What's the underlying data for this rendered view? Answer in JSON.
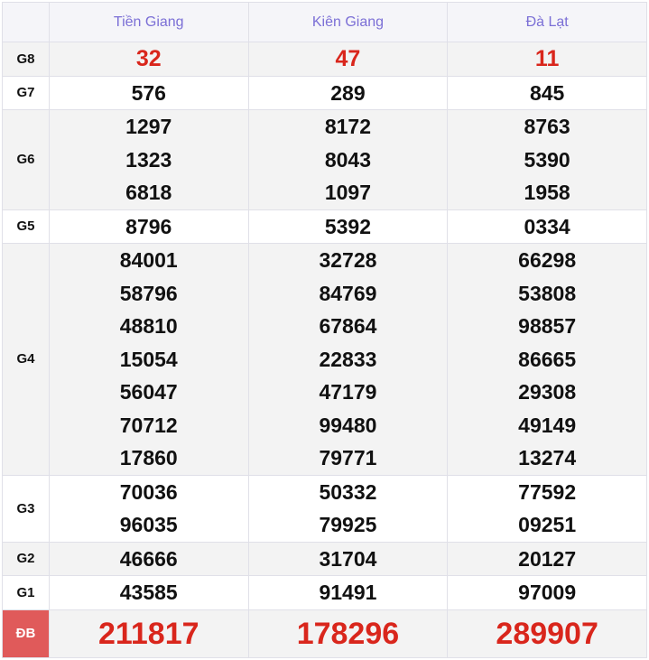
{
  "header": {
    "provinces": [
      "Tiền Giang",
      "Kiên Giang",
      "Đà Lạt"
    ]
  },
  "colors": {
    "header_text": "#7b6fd6",
    "highlight": "#d9261c",
    "special_label_bg": "#e05a5a"
  },
  "rows": [
    {
      "label": "G8",
      "values": [
        [
          "32"
        ],
        [
          "47"
        ],
        [
          "11"
        ]
      ]
    },
    {
      "label": "G7",
      "values": [
        [
          "576"
        ],
        [
          "289"
        ],
        [
          "845"
        ]
      ]
    },
    {
      "label": "G6",
      "values": [
        [
          "1297",
          "1323",
          "6818"
        ],
        [
          "8172",
          "8043",
          "1097"
        ],
        [
          "8763",
          "5390",
          "1958"
        ]
      ]
    },
    {
      "label": "G5",
      "values": [
        [
          "8796"
        ],
        [
          "5392"
        ],
        [
          "0334"
        ]
      ]
    },
    {
      "label": "G4",
      "values": [
        [
          "84001",
          "58796",
          "48810",
          "15054",
          "56047",
          "70712",
          "17860"
        ],
        [
          "32728",
          "84769",
          "67864",
          "22833",
          "47179",
          "99480",
          "79771"
        ],
        [
          "66298",
          "53808",
          "98857",
          "86665",
          "29308",
          "49149",
          "13274"
        ]
      ]
    },
    {
      "label": "G3",
      "values": [
        [
          "70036",
          "96035"
        ],
        [
          "50332",
          "79925"
        ],
        [
          "77592",
          "09251"
        ]
      ]
    },
    {
      "label": "G2",
      "values": [
        [
          "46666"
        ],
        [
          "31704"
        ],
        [
          "20127"
        ]
      ]
    },
    {
      "label": "G1",
      "values": [
        [
          "43585"
        ],
        [
          "91491"
        ],
        [
          "97009"
        ]
      ]
    },
    {
      "label": "ĐB",
      "values": [
        [
          "211817"
        ],
        [
          "178296"
        ],
        [
          "289907"
        ]
      ]
    }
  ]
}
